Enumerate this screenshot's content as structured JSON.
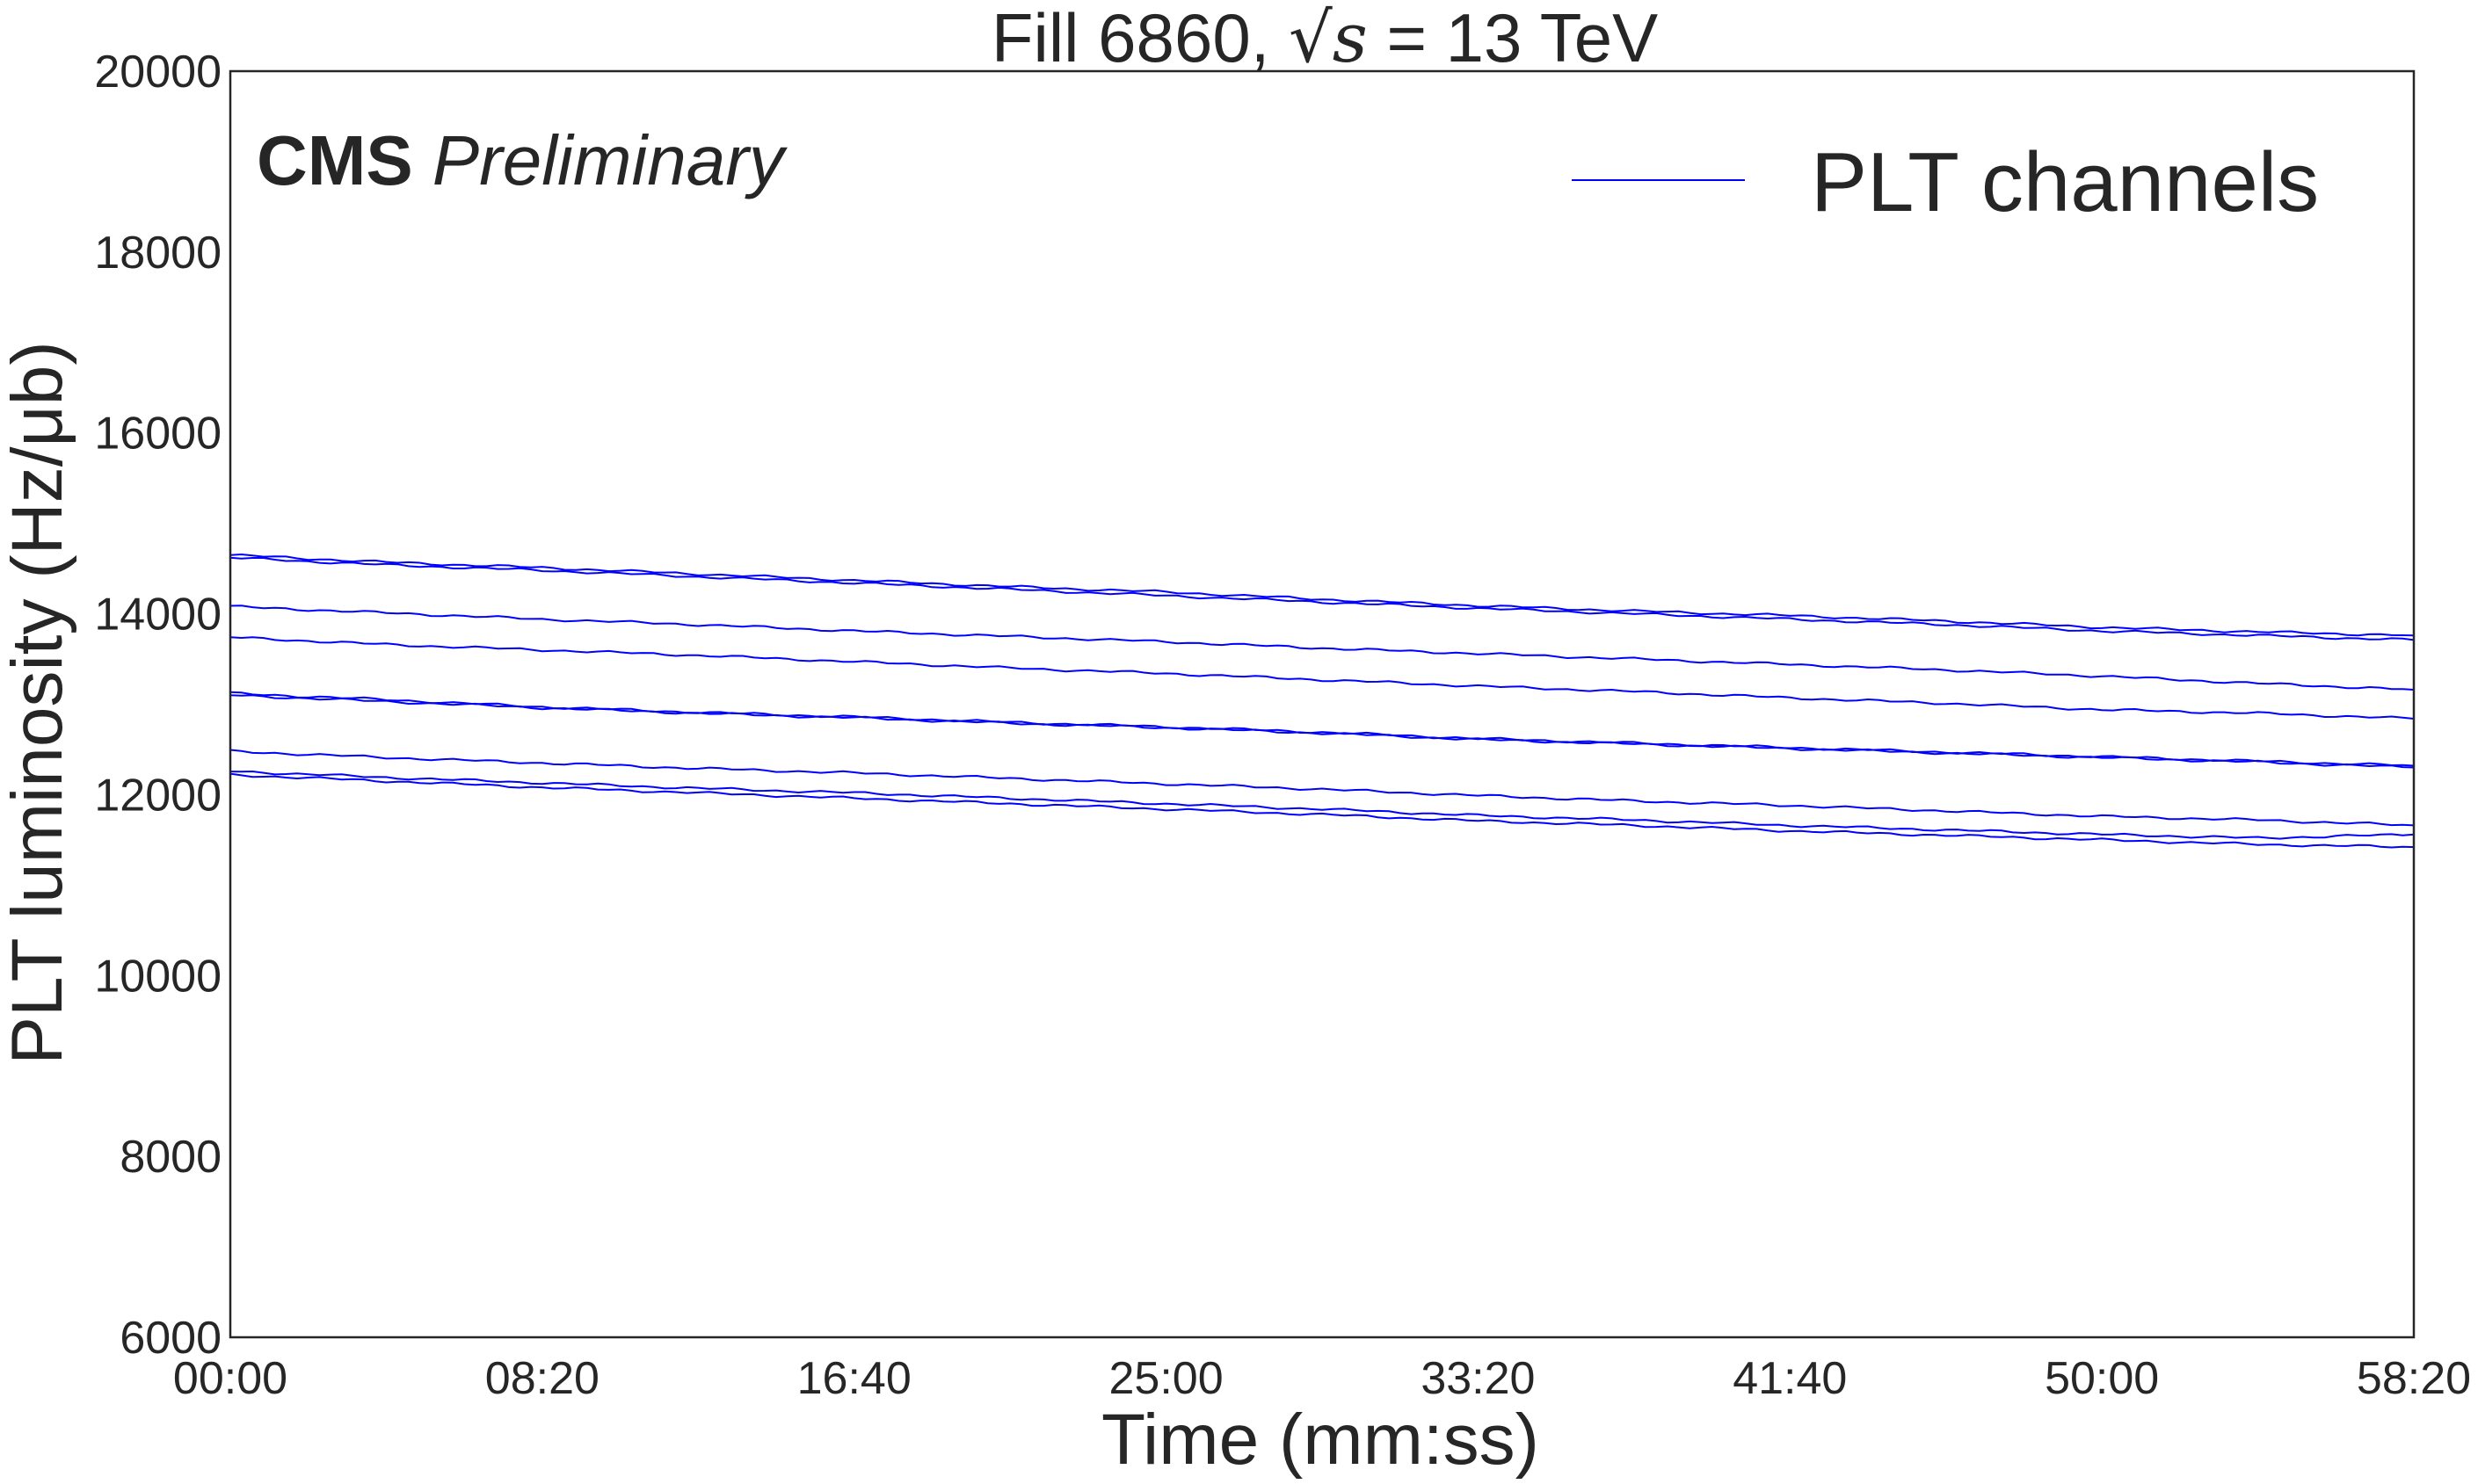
{
  "chart_data": {
    "type": "line",
    "title": {
      "prefix": "Fill 6860, ",
      "sqrt_symbol": "√",
      "math_var": "s",
      "suffix": " = 13 TeV"
    },
    "experiment_label": {
      "bold": "CMS",
      "italic": "Preliminary"
    },
    "xlabel": "Time (mm:ss)",
    "ylabel": "PLT luminosity (Hz/μb)",
    "x_unit": "seconds",
    "xlim": [
      0,
      3500
    ],
    "ylim": [
      6000,
      20000
    ],
    "x_ticks": [
      {
        "value": 0,
        "label": "00:00"
      },
      {
        "value": 500,
        "label": "08:20"
      },
      {
        "value": 1000,
        "label": "16:40"
      },
      {
        "value": 1500,
        "label": "25:00"
      },
      {
        "value": 2000,
        "label": "33:20"
      },
      {
        "value": 2500,
        "label": "41:40"
      },
      {
        "value": 3000,
        "label": "50:00"
      },
      {
        "value": 3500,
        "label": "58:20"
      }
    ],
    "y_ticks": [
      {
        "value": 6000,
        "label": "6000"
      },
      {
        "value": 8000,
        "label": "8000"
      },
      {
        "value": 10000,
        "label": "10000"
      },
      {
        "value": 12000,
        "label": "12000"
      },
      {
        "value": 14000,
        "label": "14000"
      },
      {
        "value": 16000,
        "label": "16000"
      },
      {
        "value": 18000,
        "label": "18000"
      },
      {
        "value": 20000,
        "label": "20000"
      }
    ],
    "grid": false,
    "legend": {
      "placement": "top-right",
      "entries": [
        {
          "label": "PLT channels",
          "color": "#0000ff"
        }
      ]
    },
    "series_color": "#0000ff",
    "x": [
      0,
      250,
      500,
      750,
      1000,
      1250,
      1500,
      1750,
      2000,
      2250,
      2500,
      2750,
      3000,
      3250,
      3500
    ],
    "series": [
      {
        "values": [
          14650,
          14570,
          14510,
          14440,
          14370,
          14300,
          14240,
          14160,
          14090,
          14030,
          13980,
          13920,
          13850,
          13800,
          13760
        ]
      },
      {
        "values": [
          14620,
          14540,
          14480,
          14410,
          14340,
          14270,
          14200,
          14130,
          14060,
          14000,
          13940,
          13880,
          13810,
          13760,
          13710
        ]
      },
      {
        "values": [
          14080,
          14010,
          13940,
          13880,
          13810,
          13750,
          13690,
          13620,
          13560,
          13500,
          13440,
          13380,
          13310,
          13230,
          13160
        ]
      },
      {
        "values": [
          13740,
          13660,
          13600,
          13540,
          13470,
          13400,
          13340,
          13270,
          13200,
          13140,
          13070,
          13010,
          12940,
          12900,
          12840
        ]
      },
      {
        "values": [
          13120,
          13050,
          12970,
          12910,
          12860,
          12800,
          12750,
          12690,
          12620,
          12570,
          12520,
          12470,
          12420,
          12370,
          12320
        ]
      },
      {
        "values": [
          13100,
          13030,
          12960,
          12900,
          12850,
          12790,
          12740,
          12680,
          12610,
          12560,
          12510,
          12460,
          12410,
          12360,
          12300
        ]
      },
      {
        "values": [
          12480,
          12410,
          12350,
          12290,
          12240,
          12180,
          12120,
          12060,
          11990,
          11930,
          11880,
          11820,
          11760,
          11720,
          11660
        ]
      },
      {
        "values": [
          12260,
          12190,
          12130,
          12070,
          12020,
          11960,
          11900,
          11840,
          11770,
          11720,
          11660,
          11610,
          11560,
          11520,
          11560
        ]
      },
      {
        "values": [
          12220,
          12150,
          12080,
          12020,
          11960,
          11900,
          11840,
          11780,
          11710,
          11660,
          11600,
          11550,
          11500,
          11450,
          11420
        ]
      }
    ]
  }
}
